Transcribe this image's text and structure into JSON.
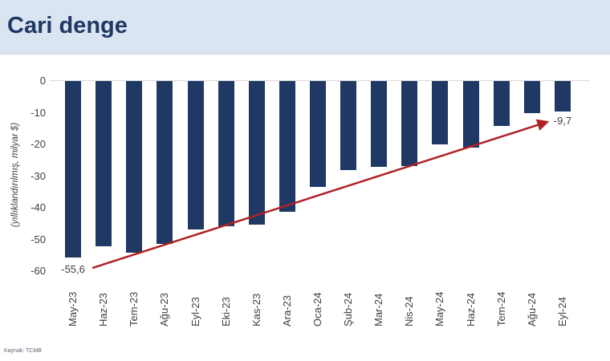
{
  "header": {
    "title": "Cari denge"
  },
  "footer": {
    "source": "Kaynak: TCMB"
  },
  "colors": {
    "header_bg": "#DBE4F1",
    "title_text": "#1F3864",
    "bar": "#1F3864",
    "trend_line": "#B02126",
    "axis_text": "#404040",
    "zero_line": "#D9D9D9",
    "source_text": "#5A6472"
  },
  "chart_data": {
    "type": "bar",
    "title": "Cari denge",
    "ylabel": "(yıllıklandırılmış, milyar $)",
    "xlabel": "",
    "categories": [
      "May-23",
      "Haz-23",
      "Tem-23",
      "Ağu-23",
      "Eyl-23",
      "Eki-23",
      "Kas-23",
      "Ara-23",
      "Oca-24",
      "Şub-24",
      "Mar-24",
      "Nis-24",
      "May-24",
      "Haz-24",
      "Tem-24",
      "Ağu-24",
      "Eyl-24"
    ],
    "values": [
      -55.6,
      -52.1,
      -54.3,
      -51.3,
      -46.8,
      -45.8,
      -45.3,
      -41.3,
      -33.3,
      -28.2,
      -27.1,
      -26.8,
      -20.0,
      -21.0,
      -14.2,
      -10.0,
      -9.7
    ],
    "ylim": [
      -60,
      0
    ],
    "yticks": [
      0,
      -10,
      -20,
      -30,
      -40,
      -50,
      -60
    ],
    "grid": "zero-line-only",
    "legend": "none",
    "data_labels": {
      "first": "-55,6",
      "last": "-9,7"
    },
    "trend_arrow": {
      "x1": 0.63,
      "y1": -59.0,
      "x2": 15.5,
      "y2": -12.9
    }
  }
}
